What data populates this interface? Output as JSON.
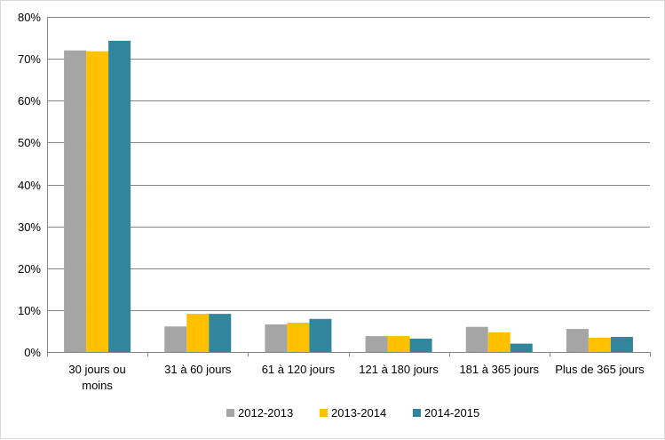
{
  "chart_data": {
    "type": "bar",
    "categories": [
      [
        "30 jours ou",
        "moins"
      ],
      [
        "31 à 60 jours"
      ],
      [
        "61 à 120 jours"
      ],
      [
        "121 à 180 jours"
      ],
      [
        "181 à 365 jours"
      ],
      [
        "Plus de 365 jours"
      ]
    ],
    "series": [
      {
        "name": "2012-2013",
        "color": "#a5a5a5",
        "values": [
          72.0,
          6.1,
          6.6,
          3.8,
          6.0,
          5.5
        ]
      },
      {
        "name": "2013-2014",
        "color": "#ffc000",
        "values": [
          71.8,
          9.1,
          7.0,
          3.8,
          4.7,
          3.4
        ]
      },
      {
        "name": "2014-2015",
        "color": "#31859c",
        "values": [
          74.3,
          9.1,
          7.9,
          3.2,
          2.0,
          3.6
        ]
      }
    ],
    "ylim": [
      0,
      80
    ],
    "yticks": [
      "0%",
      "10%",
      "20%",
      "30%",
      "40%",
      "50%",
      "60%",
      "70%",
      "80%"
    ],
    "grid": true,
    "legend_position": "bottom"
  }
}
